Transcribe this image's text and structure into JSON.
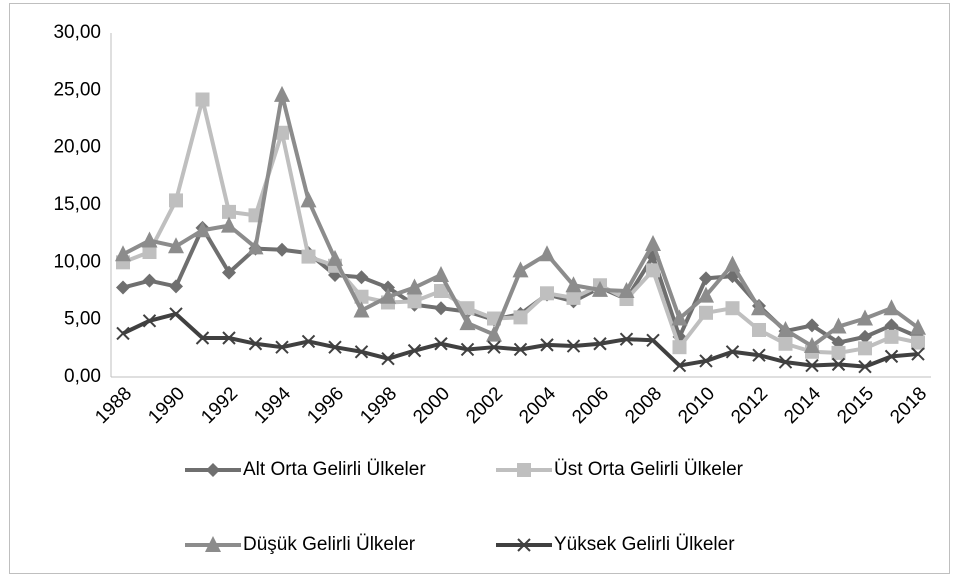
{
  "chart_data": {
    "type": "line",
    "categories": [
      "1988",
      null,
      "1990",
      null,
      "1992",
      null,
      "1994",
      null,
      "1996",
      null,
      "1998",
      null,
      "2000",
      null,
      "2002",
      null,
      "2004",
      null,
      "2006",
      null,
      "2008",
      null,
      "2010",
      null,
      "2012",
      null,
      "2014",
      null,
      "2015",
      null,
      "2018"
    ],
    "ylim": [
      0,
      30
    ],
    "yticks": [
      {
        "value": 0,
        "label": "0,00"
      },
      {
        "value": 5,
        "label": "5,00"
      },
      {
        "value": 10,
        "label": "10,00"
      },
      {
        "value": 15,
        "label": "15,00"
      },
      {
        "value": 20,
        "label": "20,00"
      },
      {
        "value": 25,
        "label": "25,00"
      },
      {
        "value": 30,
        "label": "30,00"
      }
    ],
    "series": [
      {
        "name": "Alt Orta Gelirli Ülkeler",
        "color": "#6f6f6f",
        "marker": "diamond",
        "values": [
          7.8,
          8.4,
          7.9,
          13.0,
          9.1,
          11.2,
          11.1,
          10.8,
          8.9,
          8.7,
          7.8,
          6.3,
          6.0,
          5.7,
          5.0,
          5.5,
          7.2,
          6.6,
          7.8,
          6.8,
          10.5,
          3.5,
          8.6,
          8.8,
          6.2,
          4.0,
          4.5,
          3.0,
          3.5,
          4.5,
          3.5
        ]
      },
      {
        "name": "Üst Orta Gelirli Ülkeler",
        "color": "#bfbfbf",
        "marker": "square",
        "values": [
          10.0,
          10.9,
          15.4,
          24.2,
          14.4,
          14.1,
          21.3,
          10.5,
          9.7,
          7.0,
          6.5,
          6.6,
          7.5,
          6.0,
          5.1,
          5.2,
          7.3,
          6.9,
          8.0,
          6.8,
          9.3,
          2.6,
          5.6,
          6.0,
          4.1,
          2.9,
          2.2,
          2.1,
          2.5,
          3.5,
          3.0
        ]
      },
      {
        "name": "Düşük Gelirli Ülkeler",
        "color": "#8c8c8c",
        "marker": "triangle",
        "values": [
          10.7,
          11.9,
          11.4,
          12.8,
          13.2,
          11.3,
          24.6,
          15.4,
          10.3,
          5.8,
          7.0,
          7.8,
          8.9,
          4.7,
          3.7,
          9.3,
          10.7,
          8.0,
          7.6,
          7.5,
          11.6,
          5.1,
          7.1,
          9.8,
          6.0,
          4.1,
          2.7,
          4.4,
          5.1,
          6.0,
          4.3
        ]
      },
      {
        "name": "Yüksek Gelirli Ülkeler",
        "color": "#404040",
        "marker": "x",
        "values": [
          3.8,
          4.9,
          5.5,
          3.4,
          3.4,
          2.9,
          2.6,
          3.1,
          2.6,
          2.2,
          1.6,
          2.3,
          2.9,
          2.4,
          2.6,
          2.4,
          2.8,
          2.7,
          2.9,
          3.3,
          3.2,
          1.0,
          1.4,
          2.2,
          1.9,
          1.3,
          1.0,
          1.1,
          0.9,
          1.8,
          2.0
        ]
      }
    ]
  }
}
